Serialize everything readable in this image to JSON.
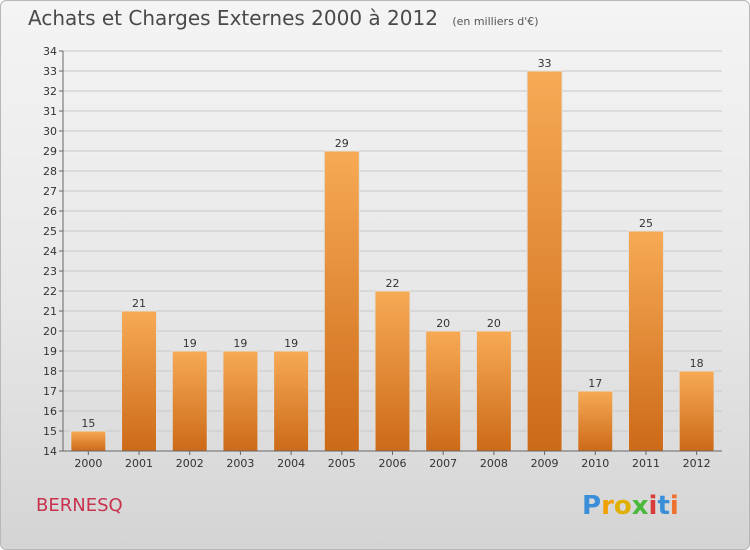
{
  "header": {
    "title": "Achats et Charges Externes 2000 à 2012",
    "unit": "(en milliers d'€)"
  },
  "footer": {
    "commune": "BERNESQ",
    "logo": {
      "letters": [
        "P",
        "r",
        "o",
        "x",
        "i",
        "t",
        "i"
      ],
      "colors": [
        "#3a8fd8",
        "#f0a000",
        "#e0b000",
        "#4ab83a",
        "#d83a3a",
        "#3a8fd8",
        "#f07030"
      ]
    }
  },
  "colors": {
    "bar_light": "#f7aa55",
    "bar_dark": "#cc6a18",
    "grid": "#c8c8c8",
    "text": "#333333"
  },
  "chart_data": {
    "type": "bar",
    "categories": [
      "2000",
      "2001",
      "2002",
      "2003",
      "2004",
      "2005",
      "2006",
      "2007",
      "2008",
      "2009",
      "2010",
      "2011",
      "2012"
    ],
    "values": [
      15,
      21,
      19,
      19,
      19,
      29,
      22,
      20,
      20,
      33,
      17,
      25,
      18
    ],
    "ylim": [
      14,
      34
    ],
    "yticks": [
      14,
      15,
      16,
      17,
      18,
      19,
      20,
      21,
      22,
      23,
      24,
      25,
      26,
      27,
      28,
      29,
      30,
      31,
      32,
      33,
      34
    ],
    "grid": true,
    "xlabel": "",
    "ylabel": ""
  }
}
